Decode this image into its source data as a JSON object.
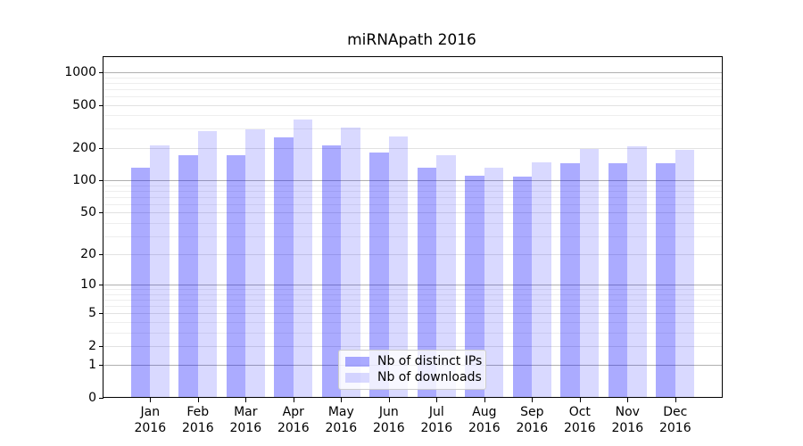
{
  "title": "miRNApath 2016",
  "colors": {
    "bar_distinct_ips": "rgba(0,0,255,0.33)",
    "bar_downloads": "rgba(0,0,255,0.15)",
    "grid_decade": "#b0b0b0",
    "grid_major": "#e2e2e2",
    "grid_minor": "#eeeeee",
    "spine": "#000000"
  },
  "chart_data": {
    "type": "bar",
    "title": "miRNApath 2016",
    "categories": [
      "Jan 2016",
      "Feb 2016",
      "Mar 2016",
      "Apr 2016",
      "May 2016",
      "Jun 2016",
      "Jul 2016",
      "Aug 2016",
      "Sep 2016",
      "Oct 2016",
      "Nov 2016",
      "Dec 2016"
    ],
    "series": [
      {
        "name": "Nb of distinct IPs",
        "color": "rgba(0,0,255,0.33)",
        "values": [
          130,
          170,
          172,
          252,
          213,
          180,
          130,
          111,
          108,
          143,
          143,
          143
        ]
      },
      {
        "name": "Nb of downloads",
        "color": "rgba(0,0,255,0.15)",
        "values": [
          210,
          286,
          296,
          368,
          310,
          257,
          170,
          130,
          146,
          194,
          208,
          192
        ]
      }
    ],
    "xlabel": "",
    "ylabel": "",
    "y_axis": {
      "scale": "log1p",
      "ticks": [
        0,
        1,
        2,
        5,
        10,
        20,
        50,
        100,
        200,
        500,
        1000
      ],
      "minor_ticks": [
        3,
        4,
        6,
        7,
        8,
        9,
        30,
        40,
        60,
        70,
        80,
        90,
        300,
        400,
        600,
        700,
        800,
        900
      ],
      "range": [
        0,
        1070
      ]
    },
    "grid": true,
    "legend_position": "lower center"
  }
}
